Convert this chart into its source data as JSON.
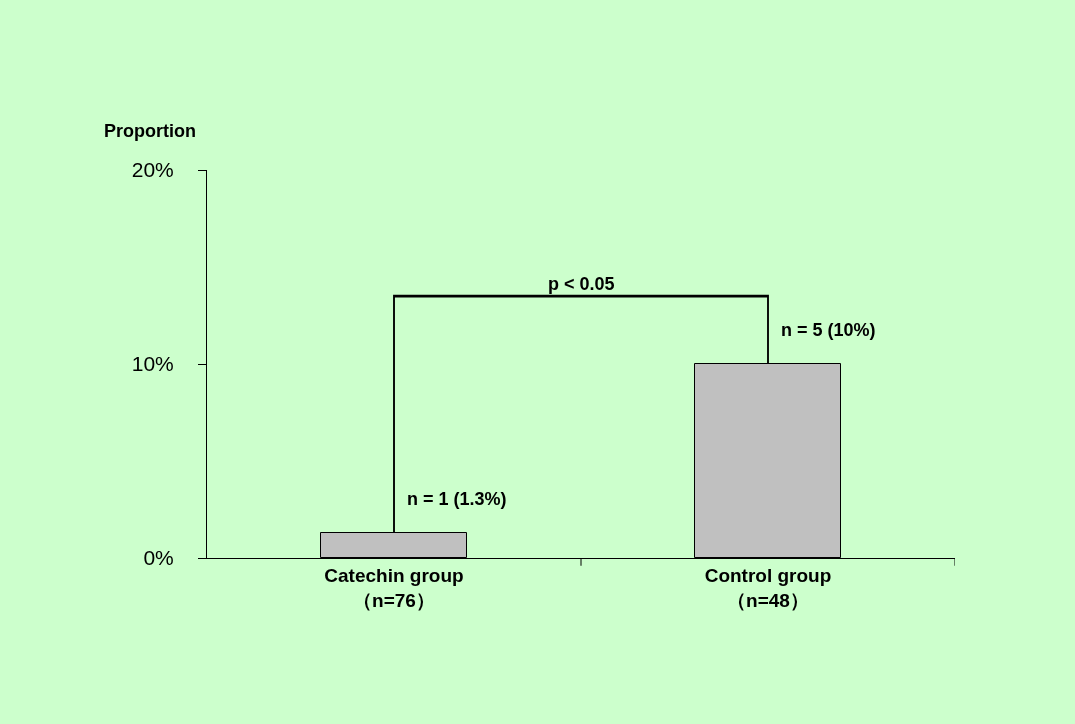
{
  "chart_data": {
    "type": "bar",
    "ylabel": "Proportion",
    "categories": [
      "Catechin group\n（n=76）",
      "Control group\n（n=48）"
    ],
    "values": [
      1.3,
      10
    ],
    "value_labels": [
      "n = 1 (1.3%)",
      "n = 5 (10%)"
    ],
    "color": "#c0c0c0",
    "ylim": [
      0,
      20
    ],
    "yticks": [
      {
        "value": 0,
        "label": "0%"
      },
      {
        "value": 10,
        "label": "10%"
      },
      {
        "value": 20,
        "label": "20%"
      }
    ],
    "grid": false,
    "annotations": [
      "p < 0.05"
    ]
  }
}
